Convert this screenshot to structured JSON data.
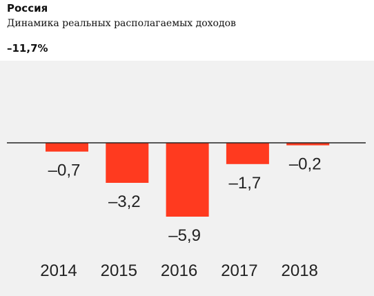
{
  "header": {
    "title": "Россия",
    "subtitle": "Динамика реальных располагаемых доходов",
    "total": "–11,7%"
  },
  "colors": {
    "bar": "#ff3a1f",
    "background": "#f1f1f1",
    "baseline": "#222222"
  },
  "chart_data": {
    "type": "bar",
    "categories": [
      "2014",
      "2015",
      "2016",
      "2017",
      "2018"
    ],
    "values": [
      -0.7,
      -3.2,
      -5.9,
      -1.7,
      -0.2
    ],
    "value_labels": [
      "–0,7",
      "–3,2",
      "–5,9",
      "–1,7",
      "–0,2"
    ],
    "title": "Россия",
    "subtitle": "Динамика реальных располагаемых доходов",
    "xlabel": "",
    "ylabel": "",
    "grid": false,
    "legend": "none"
  }
}
